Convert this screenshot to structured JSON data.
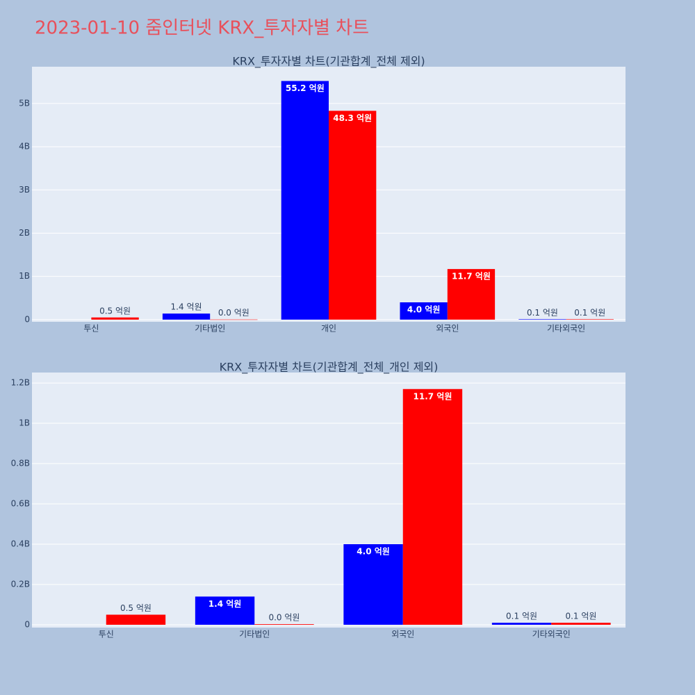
{
  "title": "2023-01-10 줌인터넷 KRX_투자자별 차트",
  "chart_data": [
    {
      "type": "bar",
      "title": "KRX_투자자별 차트(기관합계_전체 제외)",
      "categories": [
        "투신",
        "기타법인",
        "개인",
        "외국인",
        "기타외국인"
      ],
      "series": [
        {
          "color": "#0000ff",
          "values": [
            null,
            140000000,
            5520000000,
            400000000,
            10000000
          ],
          "value_labels": [
            null,
            "1.4 억원",
            "55.2 억원",
            "4.0 억원",
            "0.1 억원"
          ]
        },
        {
          "color": "#ff0000",
          "values": [
            50000000,
            3000000,
            4830000000,
            1170000000,
            10000000
          ],
          "value_labels": [
            "0.5 억원",
            "0.0 억원",
            "48.3 억원",
            "11.7 억원",
            "0.1 억원"
          ]
        }
      ],
      "ylim": [
        -50000000,
        5850000000
      ],
      "yticks": [
        0,
        {
          "value": 1000000000,
          "label": "1B"
        },
        {
          "value": 2000000000,
          "label": "2B"
        },
        {
          "value": 3000000000,
          "label": "3B"
        },
        {
          "value": 4000000000,
          "label": "4B"
        },
        {
          "value": 5000000000,
          "label": "5B"
        }
      ],
      "grid": true
    },
    {
      "type": "bar",
      "title": "KRX_투자자별 차트(기관합계_전체_개인 제외)",
      "categories": [
        "투신",
        "기타법인",
        "외국인",
        "기타외국인"
      ],
      "series": [
        {
          "color": "#0000ff",
          "values": [
            null,
            140000000,
            400000000,
            10000000
          ],
          "value_labels": [
            null,
            "1.4 억원",
            "4.0 억원",
            "0.1 억원"
          ]
        },
        {
          "color": "#ff0000",
          "values": [
            50000000,
            3000000,
            1170000000,
            10000000
          ],
          "value_labels": [
            "0.5 억원",
            "0.0 억원",
            "11.7 억원",
            "0.1 억원"
          ]
        }
      ],
      "ylim": [
        -14000000,
        1252000000
      ],
      "yticks": [
        0,
        {
          "value": 200000000,
          "label": "0.2B"
        },
        {
          "value": 400000000,
          "label": "0.4B"
        },
        {
          "value": 600000000,
          "label": "0.6B"
        },
        {
          "value": 800000000,
          "label": "0.8B"
        },
        {
          "value": 1000000000,
          "label": "1B"
        },
        {
          "value": 1200000000,
          "label": "1.2B"
        }
      ],
      "grid": true
    }
  ]
}
